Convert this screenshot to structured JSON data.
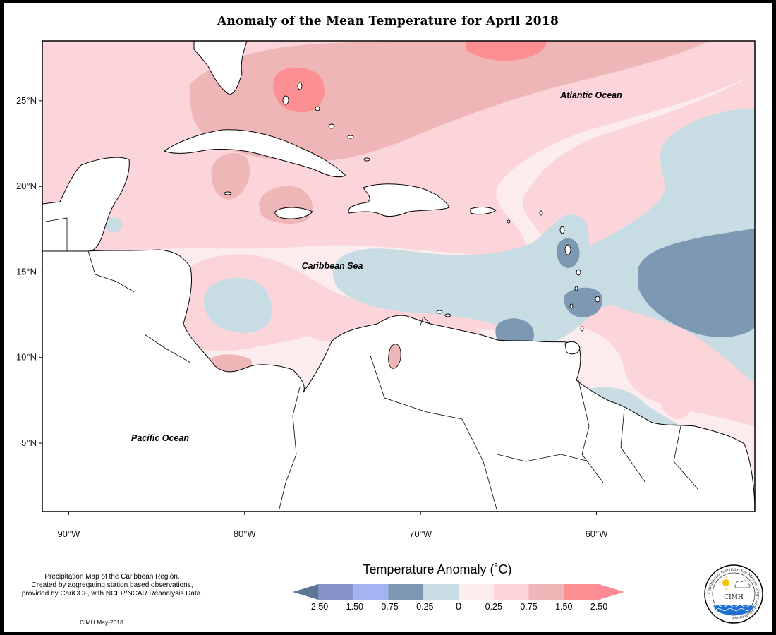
{
  "title": "Anomaly of the Mean Temperature for April 2018",
  "map": {
    "lat_ticks": [
      {
        "value": 25,
        "label": "25°N"
      },
      {
        "value": 20,
        "label": "20°N"
      },
      {
        "value": 15,
        "label": "15°N"
      },
      {
        "value": 10,
        "label": "10°N"
      },
      {
        "value": 5,
        "label": "5°N"
      }
    ],
    "lon_ticks": [
      {
        "value": -90,
        "label": "90°W"
      },
      {
        "value": -80,
        "label": "80°W"
      },
      {
        "value": -70,
        "label": "70°W"
      },
      {
        "value": -60,
        "label": "60°W"
      }
    ],
    "extent": {
      "lon_min": -91.5,
      "lon_max": -51.0,
      "lat_min": 1.0,
      "lat_max": 28.5
    },
    "ocean_labels": {
      "atlantic": "Atlantic Ocean",
      "caribbean": "Caribbean Sea",
      "pacific": "Pacific Ocean"
    },
    "land_color": "#ffffff"
  },
  "legend": {
    "title": "Temperature Anomaly (˚C)",
    "bins": [
      {
        "color": "#5f7696"
      },
      {
        "color": "#8893c9"
      },
      {
        "color": "#a4b3f2"
      },
      {
        "color": "#7c98b3"
      },
      {
        "color": "#c7dde3"
      },
      {
        "color": "#fdecee"
      },
      {
        "color": "#fbd5da"
      },
      {
        "color": "#efb6b8"
      },
      {
        "color": "#fc8f92"
      },
      {
        "color": "#fc8a98"
      }
    ],
    "labels": [
      "-2.50",
      "-1.50",
      "-0.75",
      "-0.25",
      "0",
      "0.25",
      "0.75",
      "1.50",
      "2.50"
    ]
  },
  "footnote": {
    "line1": "Precipitation Map of the Caribbean Region.",
    "line2": "Created by aggregating station based observations,",
    "line3": "provided by CariCOF, with NCEP/NCAR Reanalysis Data."
  },
  "credit": "CIMH May-2018",
  "logo": {
    "name": "CIMH",
    "ring_text": "Caribbean Institute for Meteorology and Hydrology"
  }
}
